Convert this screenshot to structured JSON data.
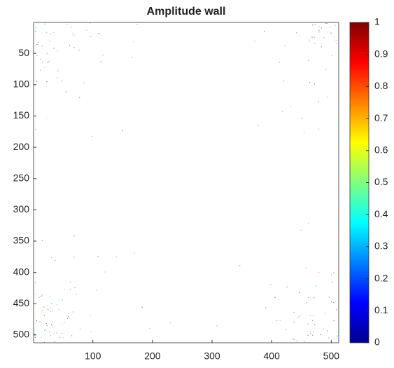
{
  "chart_data": {
    "type": "heatmap",
    "title": "Amplitude wall",
    "xlim": [
      0.5,
      512.5
    ],
    "xticks": [
      100,
      200,
      300,
      400,
      500
    ],
    "ylim": [
      0.5,
      512.5
    ],
    "yticks": [
      50,
      100,
      150,
      200,
      250,
      300,
      350,
      400,
      450,
      500
    ],
    "y_reversed": true,
    "colormap": "jet",
    "clim": [
      0,
      1
    ],
    "cticks": [
      0,
      0.1,
      0.2,
      0.3,
      0.4,
      0.5,
      0.6,
      0.7,
      0.8,
      0.9,
      1
    ]
  }
}
